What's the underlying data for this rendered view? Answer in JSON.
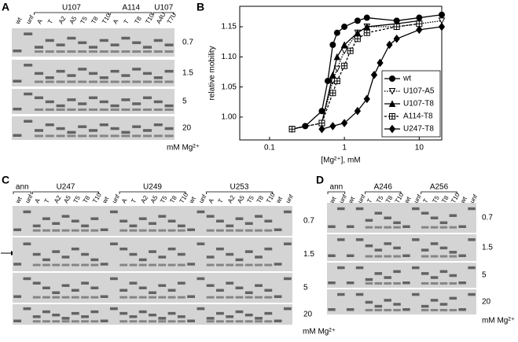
{
  "panel_a": {
    "letter": "A",
    "groups": [
      "U107",
      "A114",
      "U107"
    ],
    "lanes": [
      "wt",
      "unf",
      "A",
      "T",
      "A2",
      "A5",
      "T5",
      "T8",
      "T10",
      "A",
      "T",
      "T8",
      "T10",
      "A4U",
      "T7U"
    ],
    "concentrations": [
      "0.7",
      "1.5",
      "5",
      "20"
    ],
    "unit": "mM Mg²⁺"
  },
  "chart_data": {
    "type": "line",
    "panel_label": "B",
    "xlabel": "[Mg²⁺], mM",
    "ylabel": "relative mobility",
    "xscale": "log",
    "xlim": [
      0.04,
      20
    ],
    "ylim": [
      0.962,
      1.184
    ],
    "xticks": [
      0.1,
      1,
      10
    ],
    "yticks": [
      {
        "value": 1,
        "label": "1.00"
      },
      {
        "value": 1.05,
        "label": "1.05"
      },
      {
        "value": 1.1,
        "label": "1.10"
      },
      {
        "value": 1.15,
        "label": "1.15"
      }
    ],
    "legend": "lower right",
    "series": [
      {
        "name": "wt",
        "color": "#000000",
        "marker": "circle",
        "dash": "solid",
        "x": [
          0.2,
          0.3,
          0.5,
          0.6,
          0.7,
          0.8,
          1,
          1.5,
          2,
          5,
          10,
          20
        ],
        "values": [
          0.98,
          0.985,
          1.01,
          1.06,
          1.12,
          1.14,
          1.15,
          1.16,
          1.165,
          1.16,
          1.165,
          1.17
        ]
      },
      {
        "name": "U107-A5",
        "color": "#000000",
        "marker": "triangle-down-open",
        "dash": "dotted",
        "x": [
          0.2,
          0.5,
          0.7,
          0.8,
          1,
          1.5,
          2,
          5,
          10,
          20
        ],
        "values": [
          0.98,
          0.99,
          1.06,
          1.08,
          1.11,
          1.14,
          1.15,
          1.15,
          1.155,
          1.16
        ]
      },
      {
        "name": "U107-T8",
        "color": "#000000",
        "marker": "triangle",
        "dash": "solid",
        "x": [
          0.5,
          0.7,
          0.8,
          1,
          1.5,
          2,
          5,
          10
        ],
        "values": [
          0.99,
          1.07,
          1.1,
          1.12,
          1.14,
          1.15,
          1.155,
          1.16
        ]
      },
      {
        "name": "A114-T8",
        "color": "#000000",
        "marker": "square-open",
        "dash": "dashed",
        "x": [
          0.2,
          0.5,
          0.7,
          0.8,
          1,
          1.2,
          1.5,
          2,
          5,
          10
        ],
        "values": [
          0.98,
          0.99,
          1.04,
          1.06,
          1.085,
          1.11,
          1.13,
          1.14,
          1.15,
          1.155
        ]
      },
      {
        "name": "U247-T8",
        "color": "#000000",
        "marker": "diamond",
        "dash": "solid",
        "x": [
          0.5,
          0.7,
          1,
          1.5,
          2,
          2.5,
          3,
          4,
          5,
          10,
          20
        ],
        "values": [
          0.98,
          0.985,
          0.99,
          1.01,
          1.03,
          1.07,
          1.09,
          1.12,
          1.13,
          1.145,
          1.15
        ]
      }
    ]
  },
  "panel_c": {
    "letter": "C",
    "ann": "ann",
    "groups": [
      "U247",
      "U249",
      "U253"
    ],
    "lanes": [
      "wt",
      "unf",
      "A",
      "T",
      "A2",
      "A5",
      "T5",
      "T8",
      "T10",
      "wt",
      "unf",
      "A",
      "T",
      "A2",
      "A5",
      "T5",
      "T8",
      "T10",
      "wt",
      "unf",
      "A",
      "T",
      "A2",
      "A5",
      "T5",
      "T8",
      "T10",
      "wt",
      "unf"
    ],
    "concentrations": [
      "0.7",
      "1.5",
      "5",
      "20"
    ],
    "unit": "mM Mg²⁺"
  },
  "panel_d": {
    "letter": "D",
    "ann": "ann",
    "groups": [
      "A246",
      "A256"
    ],
    "lanes": [
      "wt",
      "unf",
      "wt",
      "unf",
      "T",
      "T5",
      "T8",
      "T10",
      "wt",
      "unf",
      "T",
      "T5",
      "T8",
      "T10",
      "wt",
      "unf"
    ],
    "concentrations": [
      "0.7",
      "1.5",
      "5",
      "20"
    ],
    "unit": "mM Mg²⁺"
  }
}
